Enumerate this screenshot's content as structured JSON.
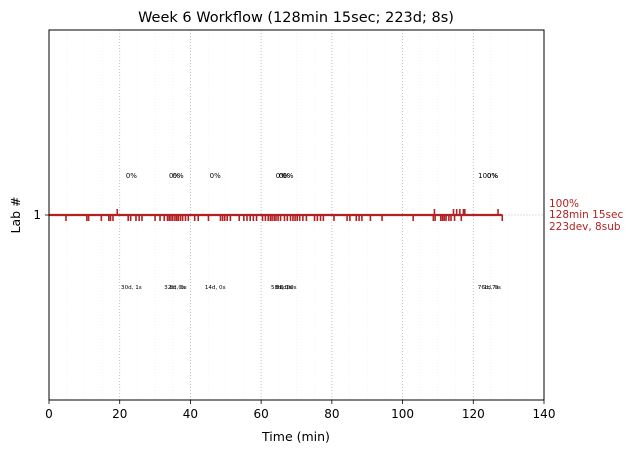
{
  "chart_data": {
    "type": "timeline",
    "title": "Week 6 Workflow (128min 15sec; 223d; 8s)",
    "xlabel": "Time (min)",
    "ylabel": "Lab #",
    "xlim": [
      0,
      140
    ],
    "xticks": [
      0,
      20,
      40,
      60,
      80,
      100,
      120,
      140
    ],
    "xtick_labels": [
      "0",
      "20",
      "40",
      "60",
      "80",
      "100",
      "120",
      "140"
    ],
    "yticks": [
      1
    ],
    "ytick_labels": [
      "1"
    ],
    "grid": "vertical dotted",
    "color": "#b22222",
    "lab": 1,
    "end_min": 128.25,
    "summary": [
      "100%",
      "128min 15sec",
      "223dev, 8sub"
    ],
    "submissions_min": [
      19.3,
      109.0,
      114.4,
      115.3,
      116.2,
      117.2,
      117.6,
      127.0
    ],
    "deviations_min": [
      4.8,
      10.7,
      11.2,
      14.8,
      16.9,
      17.4,
      18.1,
      22.4,
      23.1,
      24.6,
      25.5,
      26.3,
      30.0,
      31.4,
      32.6,
      33.5,
      34.0,
      34.5,
      35.0,
      35.6,
      36.1,
      36.6,
      37.2,
      37.8,
      38.6,
      39.4,
      41.2,
      42.2,
      45.1,
      48.5,
      49.1,
      49.7,
      50.4,
      51.3,
      53.8,
      55.1,
      56.0,
      56.9,
      57.8,
      58.7,
      60.4,
      61.2,
      62.0,
      62.6,
      63.1,
      63.7,
      64.2,
      64.8,
      65.5,
      66.6,
      67.4,
      68.3,
      69.0,
      69.6,
      70.2,
      70.9,
      71.8,
      72.8,
      75.1,
      75.9,
      76.8,
      77.6,
      80.6,
      84.3,
      85.1,
      86.9,
      87.7,
      88.5,
      90.9,
      94.2,
      103.0,
      108.7,
      109.2,
      110.8,
      111.3,
      111.8,
      112.3,
      113.1,
      113.7,
      114.7,
      116.6,
      128.2
    ],
    "milestones": [
      {
        "x": 23.3,
        "pct": "0%",
        "time": "30d, 1s"
      },
      {
        "x": 35.5,
        "pct": "0%",
        "time": "32d, 0s"
      },
      {
        "x": 36.5,
        "pct": "0%",
        "time": "8d, 0s"
      },
      {
        "x": 47.0,
        "pct": "0%",
        "time": "14d, 0s"
      },
      {
        "x": 65.7,
        "pct": "0%",
        "time": "58d, 0s"
      },
      {
        "x": 66.6,
        "pct": "0%",
        "time": "8d, 0s"
      },
      {
        "x": 67.6,
        "pct": "0%",
        "time": "2d, 0s"
      },
      {
        "x": 124.2,
        "pct": "100%",
        "time": "76d, 7s"
      },
      {
        "x": 125.4,
        "pct": "0%",
        "time": "1d, 0s"
      }
    ]
  }
}
